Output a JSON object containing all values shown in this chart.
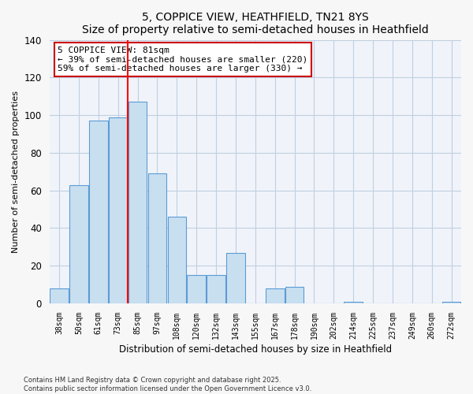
{
  "title": "5, COPPICE VIEW, HEATHFIELD, TN21 8YS",
  "subtitle": "Size of property relative to semi-detached houses in Heathfield",
  "xlabel": "Distribution of semi-detached houses by size in Heathfield",
  "ylabel": "Number of semi-detached properties",
  "categories": [
    "38sqm",
    "50sqm",
    "61sqm",
    "73sqm",
    "85sqm",
    "97sqm",
    "108sqm",
    "120sqm",
    "132sqm",
    "143sqm",
    "155sqm",
    "167sqm",
    "178sqm",
    "190sqm",
    "202sqm",
    "214sqm",
    "225sqm",
    "237sqm",
    "249sqm",
    "260sqm",
    "272sqm"
  ],
  "values": [
    8,
    63,
    97,
    99,
    107,
    69,
    46,
    15,
    15,
    27,
    0,
    8,
    9,
    0,
    0,
    1,
    0,
    0,
    0,
    0,
    1
  ],
  "bar_color": "#c8dff0",
  "bar_edge_color": "#5b9bd5",
  "vline_x_index": 3.5,
  "vline_color": "red",
  "annotation_title": "5 COPPICE VIEW: 81sqm",
  "annotation_line1": "← 39% of semi-detached houses are smaller (220)",
  "annotation_line2": "59% of semi-detached houses are larger (330) →",
  "annotation_box_color": "white",
  "annotation_box_edge_color": "#cc0000",
  "ylim": [
    0,
    140
  ],
  "yticks": [
    0,
    20,
    40,
    60,
    80,
    100,
    120,
    140
  ],
  "footnote1": "Contains HM Land Registry data © Crown copyright and database right 2025.",
  "footnote2": "Contains public sector information licensed under the Open Government Licence v3.0.",
  "bg_color": "#f7f7f7",
  "plot_bg_color": "#f0f4fa"
}
